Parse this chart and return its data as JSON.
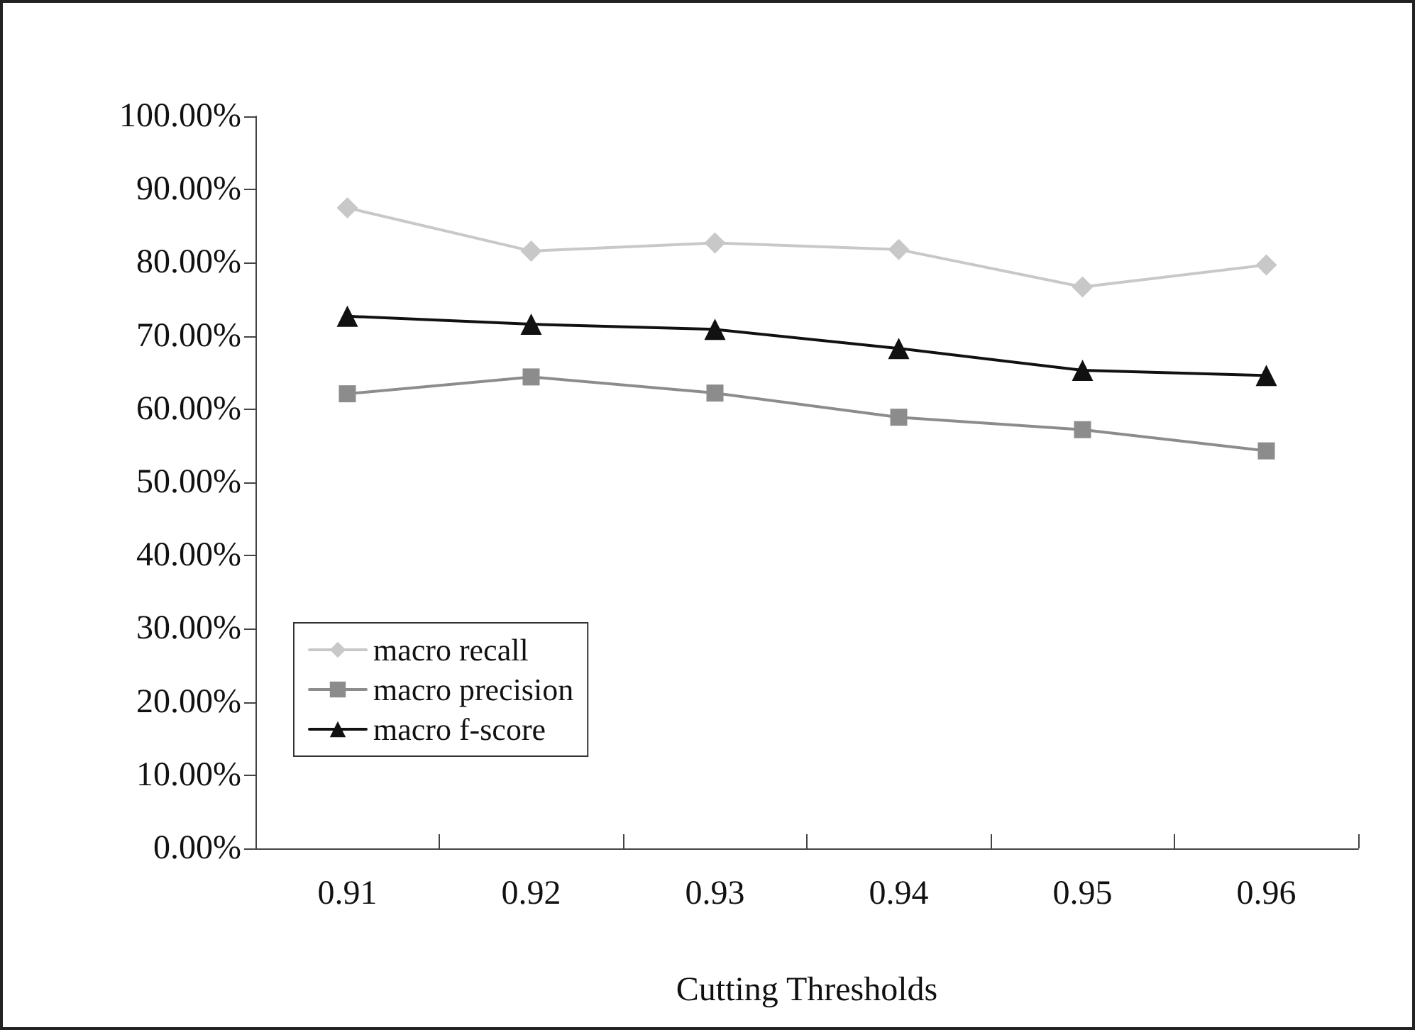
{
  "chart_data": {
    "type": "line",
    "xlabel": "Cutting Thresholds",
    "categories": [
      "0.91",
      "0.92",
      "0.93",
      "0.94",
      "0.95",
      "0.96"
    ],
    "series": [
      {
        "name": "macro recall",
        "color": "#c8c8c8",
        "marker": "diamond",
        "values": [
          87.5,
          81.6,
          82.7,
          81.8,
          76.7,
          79.7
        ]
      },
      {
        "name": "macro precision",
        "color": "#8c8c8c",
        "marker": "square",
        "values": [
          62.1,
          64.4,
          62.2,
          58.9,
          57.2,
          54.3
        ]
      },
      {
        "name": "macro f-score",
        "color": "#111111",
        "marker": "triangle",
        "values": [
          72.7,
          71.6,
          70.9,
          68.3,
          65.3,
          64.6
        ]
      }
    ],
    "ylim": [
      0,
      100
    ],
    "yticks": [
      {
        "value": 0,
        "label": "0.00%"
      },
      {
        "value": 10,
        "label": "10.00%"
      },
      {
        "value": 20,
        "label": "20.00%"
      },
      {
        "value": 30,
        "label": "30.00%"
      },
      {
        "value": 40,
        "label": "40.00%"
      },
      {
        "value": 50,
        "label": "50.00%"
      },
      {
        "value": 60,
        "label": "60.00%"
      },
      {
        "value": 70,
        "label": "70.00%"
      },
      {
        "value": 80,
        "label": "80.00%"
      },
      {
        "value": 90,
        "label": "90.00%"
      },
      {
        "value": 100,
        "label": "100.00%"
      }
    ],
    "grid": false,
    "legend": "bottom left",
    "line_style": "solid"
  }
}
